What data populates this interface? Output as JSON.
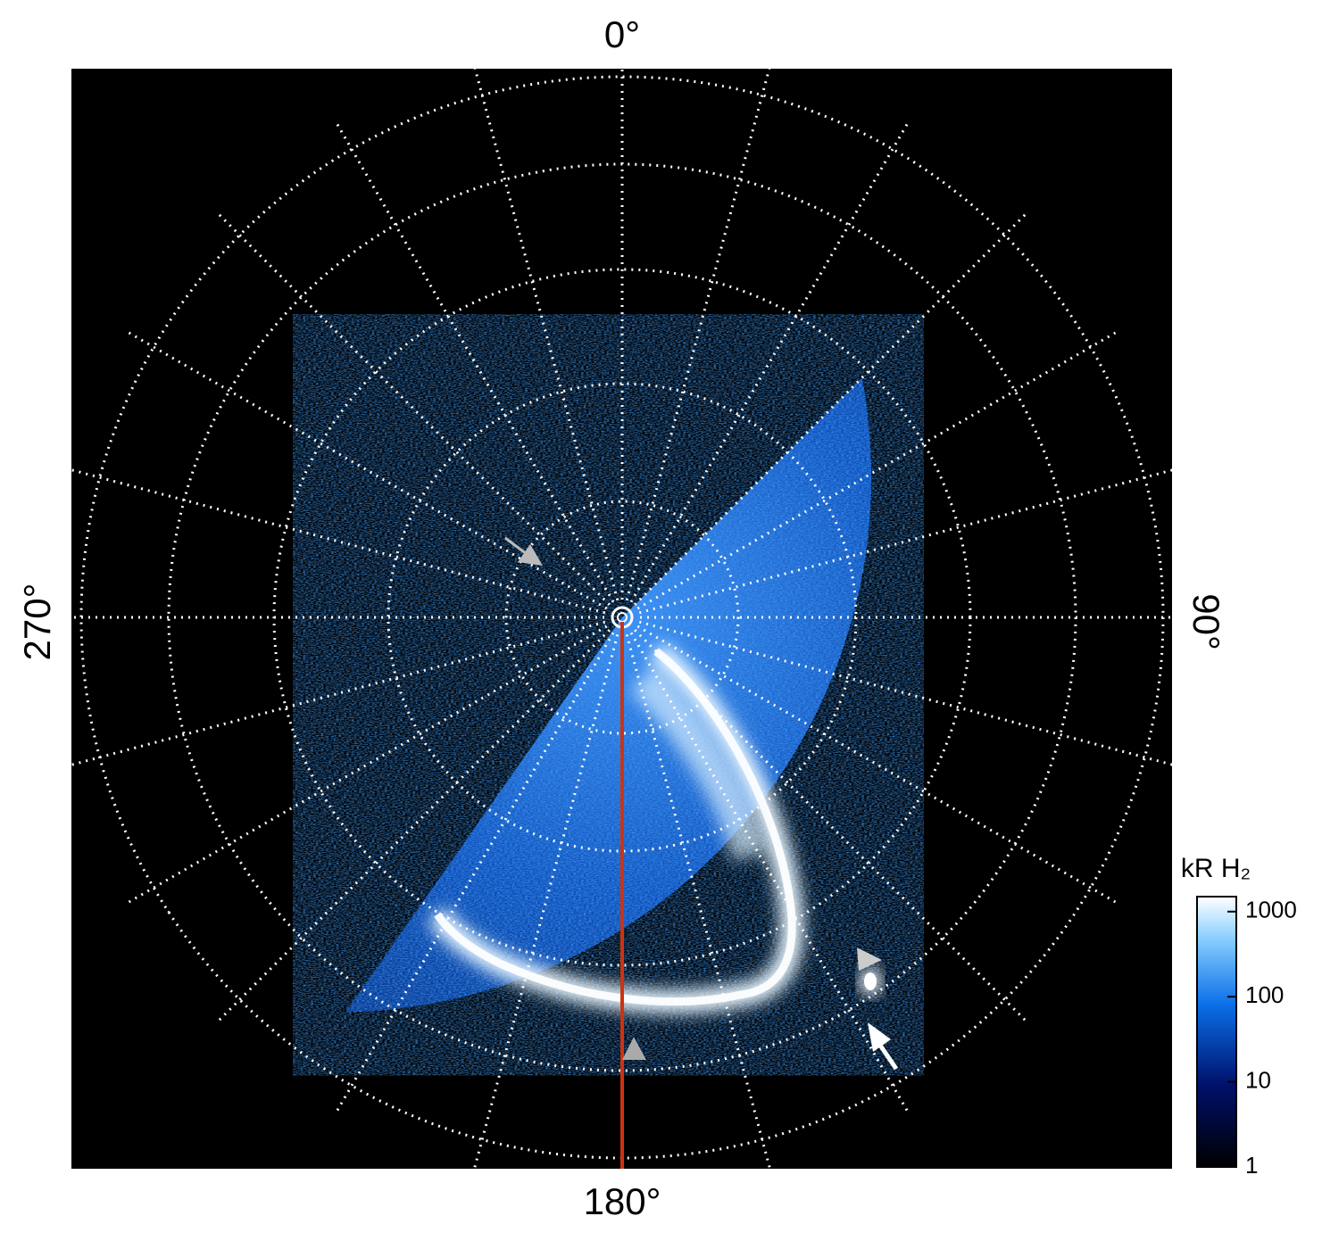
{
  "azimuth_labels": {
    "top": "0°",
    "right": "90°",
    "bottom": "180°",
    "left": "270°"
  },
  "colorbar": {
    "label": "kR H₂",
    "scale": "log",
    "lim": [
      1,
      1500
    ],
    "ticks": [
      1,
      10,
      100,
      1000
    ]
  }
}
